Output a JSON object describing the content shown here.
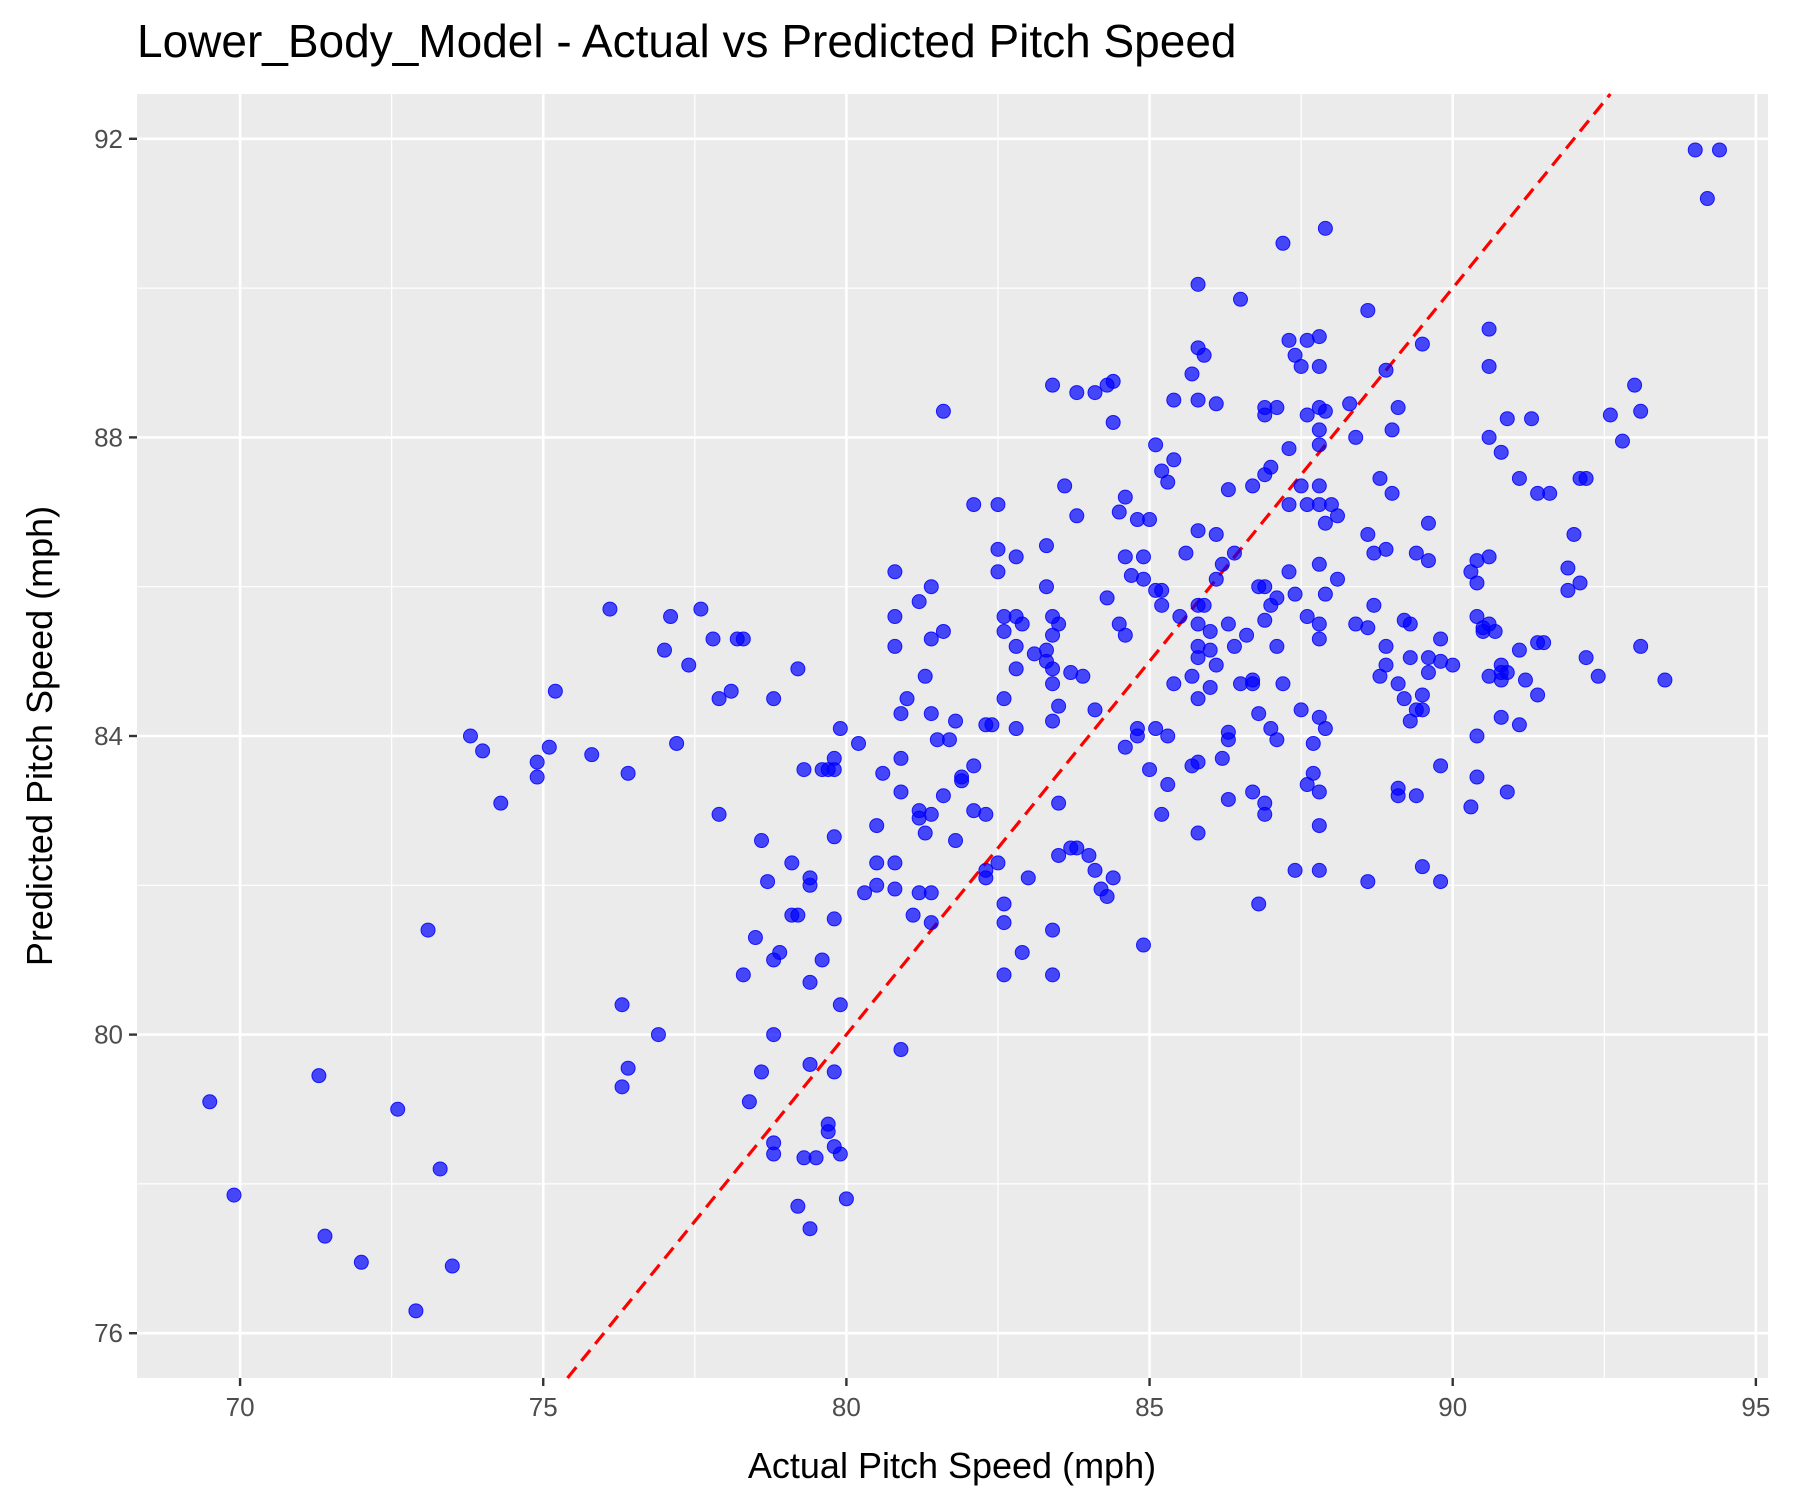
{
  "chart_data": {
    "type": "scatter",
    "title": "Lower_Body_Model - Actual vs Predicted Pitch Speed",
    "xlabel": "Actual Pitch Speed (mph)",
    "ylabel": "Predicted Pitch Speed (mph)",
    "xlim": [
      68.3,
      95.2
    ],
    "ylim": [
      75.4,
      92.6
    ],
    "x_ticks": [
      70,
      75,
      80,
      85,
      90,
      95
    ],
    "y_ticks": [
      76,
      80,
      84,
      88,
      92
    ],
    "grid": true,
    "point_color": "#0000ff",
    "reference_line": {
      "label": "y = x",
      "color": "#ff0000",
      "style": "dashed"
    },
    "points": [
      [
        69.5,
        79.1
      ],
      [
        69.9,
        77.85
      ],
      [
        71.3,
        79.45
      ],
      [
        71.4,
        77.3
      ],
      [
        72.0,
        76.95
      ],
      [
        72.6,
        79.0
      ],
      [
        72.9,
        76.3
      ],
      [
        73.1,
        81.4
      ],
      [
        73.3,
        78.2
      ],
      [
        73.5,
        76.9
      ],
      [
        73.8,
        84.0
      ],
      [
        74.0,
        83.8
      ],
      [
        74.3,
        83.1
      ],
      [
        74.9,
        83.65
      ],
      [
        74.9,
        83.45
      ],
      [
        75.1,
        83.85
      ],
      [
        75.2,
        84.6
      ],
      [
        75.8,
        83.75
      ],
      [
        76.1,
        85.7
      ],
      [
        76.3,
        80.4
      ],
      [
        76.3,
        79.3
      ],
      [
        76.4,
        79.55
      ],
      [
        76.4,
        83.5
      ],
      [
        76.9,
        80.0
      ],
      [
        77.0,
        85.15
      ],
      [
        77.1,
        85.6
      ],
      [
        77.2,
        83.9
      ],
      [
        77.4,
        84.95
      ],
      [
        77.6,
        85.7
      ],
      [
        77.8,
        85.3
      ],
      [
        77.9,
        82.95
      ],
      [
        77.9,
        84.5
      ],
      [
        78.1,
        84.6
      ],
      [
        78.2,
        85.3
      ],
      [
        78.3,
        85.3
      ],
      [
        78.3,
        80.8
      ],
      [
        78.4,
        79.1
      ],
      [
        78.5,
        81.3
      ],
      [
        78.6,
        79.5
      ],
      [
        78.6,
        82.6
      ],
      [
        78.7,
        82.05
      ],
      [
        78.8,
        84.5
      ],
      [
        78.8,
        80.0
      ],
      [
        78.8,
        81.0
      ],
      [
        78.8,
        78.55
      ],
      [
        78.8,
        78.4
      ],
      [
        78.9,
        81.1
      ],
      [
        79.1,
        82.3
      ],
      [
        79.1,
        81.6
      ],
      [
        79.2,
        81.6
      ],
      [
        79.2,
        77.7
      ],
      [
        79.2,
        84.9
      ],
      [
        79.3,
        83.55
      ],
      [
        79.3,
        78.35
      ],
      [
        79.4,
        79.6
      ],
      [
        79.4,
        82.1
      ],
      [
        79.4,
        82.0
      ],
      [
        79.4,
        80.7
      ],
      [
        79.4,
        77.4
      ],
      [
        79.5,
        78.35
      ],
      [
        79.6,
        83.55
      ],
      [
        79.6,
        81.0
      ],
      [
        79.7,
        78.7
      ],
      [
        79.7,
        78.8
      ],
      [
        79.7,
        83.55
      ],
      [
        79.8,
        78.5
      ],
      [
        79.8,
        79.5
      ],
      [
        79.8,
        83.7
      ],
      [
        79.8,
        83.55
      ],
      [
        79.8,
        82.65
      ],
      [
        79.8,
        81.55
      ],
      [
        79.9,
        78.4
      ],
      [
        79.9,
        84.1
      ],
      [
        79.9,
        80.4
      ],
      [
        80.0,
        77.8
      ],
      [
        80.2,
        83.9
      ],
      [
        80.3,
        81.9
      ],
      [
        80.5,
        82.3
      ],
      [
        80.5,
        82.0
      ],
      [
        80.5,
        82.8
      ],
      [
        80.6,
        83.5
      ],
      [
        80.8,
        86.2
      ],
      [
        80.8,
        85.6
      ],
      [
        80.8,
        85.2
      ],
      [
        80.8,
        82.3
      ],
      [
        80.8,
        81.95
      ],
      [
        80.9,
        84.3
      ],
      [
        80.9,
        83.25
      ],
      [
        80.9,
        83.7
      ],
      [
        80.9,
        79.8
      ],
      [
        81.0,
        84.5
      ],
      [
        81.1,
        81.6
      ],
      [
        81.2,
        85.8
      ],
      [
        81.2,
        82.9
      ],
      [
        81.2,
        83.0
      ],
      [
        81.2,
        81.9
      ],
      [
        81.3,
        84.8
      ],
      [
        81.3,
        82.7
      ],
      [
        81.4,
        86.0
      ],
      [
        81.4,
        85.3
      ],
      [
        81.4,
        84.3
      ],
      [
        81.4,
        82.95
      ],
      [
        81.4,
        81.9
      ],
      [
        81.4,
        81.5
      ],
      [
        81.5,
        83.95
      ],
      [
        81.6,
        88.35
      ],
      [
        81.6,
        85.4
      ],
      [
        81.6,
        83.2
      ],
      [
        81.7,
        83.95
      ],
      [
        81.8,
        84.2
      ],
      [
        81.8,
        82.6
      ],
      [
        81.9,
        83.4
      ],
      [
        81.9,
        83.45
      ],
      [
        82.1,
        87.1
      ],
      [
        82.1,
        83.0
      ],
      [
        82.1,
        83.6
      ],
      [
        82.3,
        82.2
      ],
      [
        82.3,
        82.1
      ],
      [
        82.3,
        82.95
      ],
      [
        82.3,
        84.15
      ],
      [
        82.4,
        84.15
      ],
      [
        82.5,
        87.1
      ],
      [
        82.5,
        86.5
      ],
      [
        82.5,
        86.2
      ],
      [
        82.5,
        82.3
      ],
      [
        82.6,
        85.6
      ],
      [
        82.6,
        85.4
      ],
      [
        82.6,
        84.5
      ],
      [
        82.6,
        81.75
      ],
      [
        82.6,
        81.5
      ],
      [
        82.6,
        80.8
      ],
      [
        82.8,
        86.4
      ],
      [
        82.8,
        85.6
      ],
      [
        82.8,
        85.2
      ],
      [
        82.8,
        84.9
      ],
      [
        82.8,
        84.1
      ],
      [
        82.9,
        85.5
      ],
      [
        82.9,
        81.1
      ],
      [
        83.0,
        82.1
      ],
      [
        83.1,
        85.1
      ],
      [
        83.3,
        86.55
      ],
      [
        83.3,
        86.0
      ],
      [
        83.3,
        85.15
      ],
      [
        83.3,
        85.0
      ],
      [
        83.4,
        85.6
      ],
      [
        83.4,
        85.35
      ],
      [
        83.4,
        84.9
      ],
      [
        83.4,
        84.7
      ],
      [
        83.4,
        84.2
      ],
      [
        83.4,
        81.4
      ],
      [
        83.4,
        80.8
      ],
      [
        83.4,
        88.7
      ],
      [
        83.5,
        85.5
      ],
      [
        83.5,
        84.4
      ],
      [
        83.5,
        83.1
      ],
      [
        83.5,
        82.4
      ],
      [
        83.6,
        87.35
      ],
      [
        83.7,
        82.5
      ],
      [
        83.7,
        84.85
      ],
      [
        83.8,
        86.95
      ],
      [
        83.8,
        88.6
      ],
      [
        83.8,
        82.5
      ],
      [
        83.9,
        84.8
      ],
      [
        84.0,
        82.4
      ],
      [
        84.1,
        84.35
      ],
      [
        84.1,
        82.2
      ],
      [
        84.1,
        88.6
      ],
      [
        84.2,
        81.95
      ],
      [
        84.3,
        81.85
      ],
      [
        84.3,
        85.85
      ],
      [
        84.3,
        88.7
      ],
      [
        84.4,
        88.75
      ],
      [
        84.4,
        88.2
      ],
      [
        84.4,
        82.1
      ],
      [
        84.5,
        87.0
      ],
      [
        84.5,
        85.5
      ],
      [
        84.6,
        87.2
      ],
      [
        84.6,
        86.4
      ],
      [
        84.6,
        85.35
      ],
      [
        84.6,
        83.85
      ],
      [
        84.7,
        86.15
      ],
      [
        84.8,
        86.9
      ],
      [
        84.8,
        84.1
      ],
      [
        84.8,
        84.0
      ],
      [
        84.9,
        86.4
      ],
      [
        84.9,
        86.1
      ],
      [
        84.9,
        81.2
      ],
      [
        85.0,
        86.9
      ],
      [
        85.0,
        83.55
      ],
      [
        85.1,
        87.9
      ],
      [
        85.1,
        85.95
      ],
      [
        85.1,
        84.1
      ],
      [
        85.2,
        87.55
      ],
      [
        85.2,
        85.95
      ],
      [
        85.2,
        85.75
      ],
      [
        85.2,
        82.95
      ],
      [
        85.3,
        87.4
      ],
      [
        85.3,
        84.0
      ],
      [
        85.3,
        83.35
      ],
      [
        85.4,
        88.5
      ],
      [
        85.4,
        87.7
      ],
      [
        85.4,
        84.7
      ],
      [
        85.5,
        85.6
      ],
      [
        85.6,
        86.45
      ],
      [
        85.7,
        88.85
      ],
      [
        85.7,
        84.8
      ],
      [
        85.7,
        83.6
      ],
      [
        85.8,
        90.05
      ],
      [
        85.8,
        89.2
      ],
      [
        85.8,
        88.5
      ],
      [
        85.8,
        86.75
      ],
      [
        85.8,
        85.75
      ],
      [
        85.8,
        85.5
      ],
      [
        85.8,
        85.2
      ],
      [
        85.8,
        85.05
      ],
      [
        85.8,
        84.5
      ],
      [
        85.8,
        83.65
      ],
      [
        85.8,
        82.7
      ],
      [
        85.9,
        89.1
      ],
      [
        85.9,
        85.75
      ],
      [
        86.0,
        85.4
      ],
      [
        86.0,
        84.65
      ],
      [
        86.0,
        85.15
      ],
      [
        86.1,
        88.45
      ],
      [
        86.1,
        86.7
      ],
      [
        86.1,
        86.1
      ],
      [
        86.1,
        84.95
      ],
      [
        86.2,
        86.3
      ],
      [
        86.2,
        83.7
      ],
      [
        86.3,
        87.3
      ],
      [
        86.3,
        85.5
      ],
      [
        86.3,
        84.05
      ],
      [
        86.3,
        83.95
      ],
      [
        86.3,
        83.15
      ],
      [
        86.4,
        86.45
      ],
      [
        86.4,
        85.2
      ],
      [
        86.5,
        84.7
      ],
      [
        86.5,
        89.85
      ],
      [
        86.6,
        85.35
      ],
      [
        86.7,
        87.35
      ],
      [
        86.7,
        84.75
      ],
      [
        86.7,
        84.7
      ],
      [
        86.7,
        83.25
      ],
      [
        86.8,
        86.0
      ],
      [
        86.8,
        84.3
      ],
      [
        86.8,
        81.75
      ],
      [
        86.9,
        88.4
      ],
      [
        86.9,
        88.3
      ],
      [
        86.9,
        87.5
      ],
      [
        86.9,
        86.0
      ],
      [
        86.9,
        85.55
      ],
      [
        86.9,
        83.1
      ],
      [
        86.9,
        82.95
      ],
      [
        87.0,
        85.75
      ],
      [
        87.0,
        84.1
      ],
      [
        87.0,
        87.6
      ],
      [
        87.1,
        88.4
      ],
      [
        87.1,
        85.2
      ],
      [
        87.1,
        85.85
      ],
      [
        87.1,
        83.95
      ],
      [
        87.2,
        90.6
      ],
      [
        87.2,
        84.7
      ],
      [
        87.3,
        89.3
      ],
      [
        87.3,
        87.85
      ],
      [
        87.3,
        87.1
      ],
      [
        87.3,
        86.2
      ],
      [
        87.4,
        89.1
      ],
      [
        87.4,
        85.9
      ],
      [
        87.4,
        82.2
      ],
      [
        87.5,
        88.95
      ],
      [
        87.5,
        87.35
      ],
      [
        87.5,
        84.35
      ],
      [
        87.6,
        89.3
      ],
      [
        87.6,
        88.3
      ],
      [
        87.6,
        87.1
      ],
      [
        87.6,
        85.6
      ],
      [
        87.6,
        83.35
      ],
      [
        87.7,
        83.9
      ],
      [
        87.7,
        83.5
      ],
      [
        87.8,
        89.35
      ],
      [
        87.8,
        88.95
      ],
      [
        87.8,
        88.4
      ],
      [
        87.8,
        88.1
      ],
      [
        87.8,
        87.9
      ],
      [
        87.8,
        87.35
      ],
      [
        87.8,
        87.1
      ],
      [
        87.8,
        86.3
      ],
      [
        87.8,
        85.5
      ],
      [
        87.8,
        85.3
      ],
      [
        87.8,
        84.25
      ],
      [
        87.8,
        83.25
      ],
      [
        87.8,
        82.8
      ],
      [
        87.8,
        82.2
      ],
      [
        87.9,
        90.8
      ],
      [
        87.9,
        88.35
      ],
      [
        87.9,
        86.85
      ],
      [
        87.9,
        85.9
      ],
      [
        87.9,
        84.1
      ],
      [
        88.0,
        87.1
      ],
      [
        88.1,
        86.1
      ],
      [
        88.1,
        86.95
      ],
      [
        88.3,
        88.45
      ],
      [
        88.4,
        88.0
      ],
      [
        88.4,
        85.5
      ],
      [
        88.6,
        89.7
      ],
      [
        88.6,
        86.7
      ],
      [
        88.6,
        85.45
      ],
      [
        88.6,
        82.05
      ],
      [
        88.7,
        86.45
      ],
      [
        88.7,
        85.75
      ],
      [
        88.8,
        87.45
      ],
      [
        88.8,
        84.8
      ],
      [
        88.9,
        86.5
      ],
      [
        88.9,
        85.2
      ],
      [
        88.9,
        84.95
      ],
      [
        88.9,
        88.9
      ],
      [
        89.0,
        87.25
      ],
      [
        89.0,
        88.1
      ],
      [
        89.1,
        88.4
      ],
      [
        89.1,
        84.7
      ],
      [
        89.1,
        83.3
      ],
      [
        89.1,
        83.2
      ],
      [
        89.2,
        85.55
      ],
      [
        89.2,
        84.5
      ],
      [
        89.3,
        85.5
      ],
      [
        89.3,
        85.05
      ],
      [
        89.3,
        84.2
      ],
      [
        89.4,
        86.45
      ],
      [
        89.4,
        84.35
      ],
      [
        89.4,
        83.2
      ],
      [
        89.5,
        89.25
      ],
      [
        89.5,
        84.55
      ],
      [
        89.5,
        84.35
      ],
      [
        89.5,
        82.25
      ],
      [
        89.6,
        86.85
      ],
      [
        89.6,
        86.35
      ],
      [
        89.6,
        85.05
      ],
      [
        89.6,
        84.85
      ],
      [
        89.8,
        85.3
      ],
      [
        89.8,
        85.0
      ],
      [
        89.8,
        83.6
      ],
      [
        89.8,
        82.05
      ],
      [
        90.0,
        84.95
      ],
      [
        90.3,
        83.05
      ],
      [
        90.3,
        86.2
      ],
      [
        90.4,
        86.35
      ],
      [
        90.4,
        86.05
      ],
      [
        90.4,
        85.6
      ],
      [
        90.4,
        84.0
      ],
      [
        90.4,
        83.45
      ],
      [
        90.5,
        85.4
      ],
      [
        90.5,
        85.45
      ],
      [
        90.6,
        89.45
      ],
      [
        90.6,
        88.95
      ],
      [
        90.6,
        88.0
      ],
      [
        90.6,
        86.4
      ],
      [
        90.6,
        85.5
      ],
      [
        90.6,
        84.8
      ],
      [
        90.7,
        85.4
      ],
      [
        90.8,
        87.8
      ],
      [
        90.8,
        84.95
      ],
      [
        90.8,
        84.85
      ],
      [
        90.8,
        84.75
      ],
      [
        90.8,
        84.25
      ],
      [
        90.9,
        88.25
      ],
      [
        90.9,
        84.85
      ],
      [
        90.9,
        83.25
      ],
      [
        91.1,
        87.45
      ],
      [
        91.1,
        85.15
      ],
      [
        91.1,
        84.15
      ],
      [
        91.2,
        84.75
      ],
      [
        91.3,
        88.25
      ],
      [
        91.4,
        87.25
      ],
      [
        91.4,
        85.25
      ],
      [
        91.4,
        84.55
      ],
      [
        91.5,
        85.25
      ],
      [
        91.6,
        87.25
      ],
      [
        91.9,
        86.25
      ],
      [
        91.9,
        85.95
      ],
      [
        92.0,
        86.7
      ],
      [
        92.1,
        87.45
      ],
      [
        92.1,
        86.05
      ],
      [
        92.2,
        87.45
      ],
      [
        92.2,
        85.05
      ],
      [
        92.4,
        84.8
      ],
      [
        92.6,
        88.3
      ],
      [
        92.8,
        87.95
      ],
      [
        93.0,
        88.7
      ],
      [
        93.1,
        88.35
      ],
      [
        93.1,
        85.2
      ],
      [
        93.5,
        84.75
      ],
      [
        94.0,
        91.85
      ],
      [
        94.2,
        91.2
      ],
      [
        94.4,
        91.85
      ]
    ]
  }
}
